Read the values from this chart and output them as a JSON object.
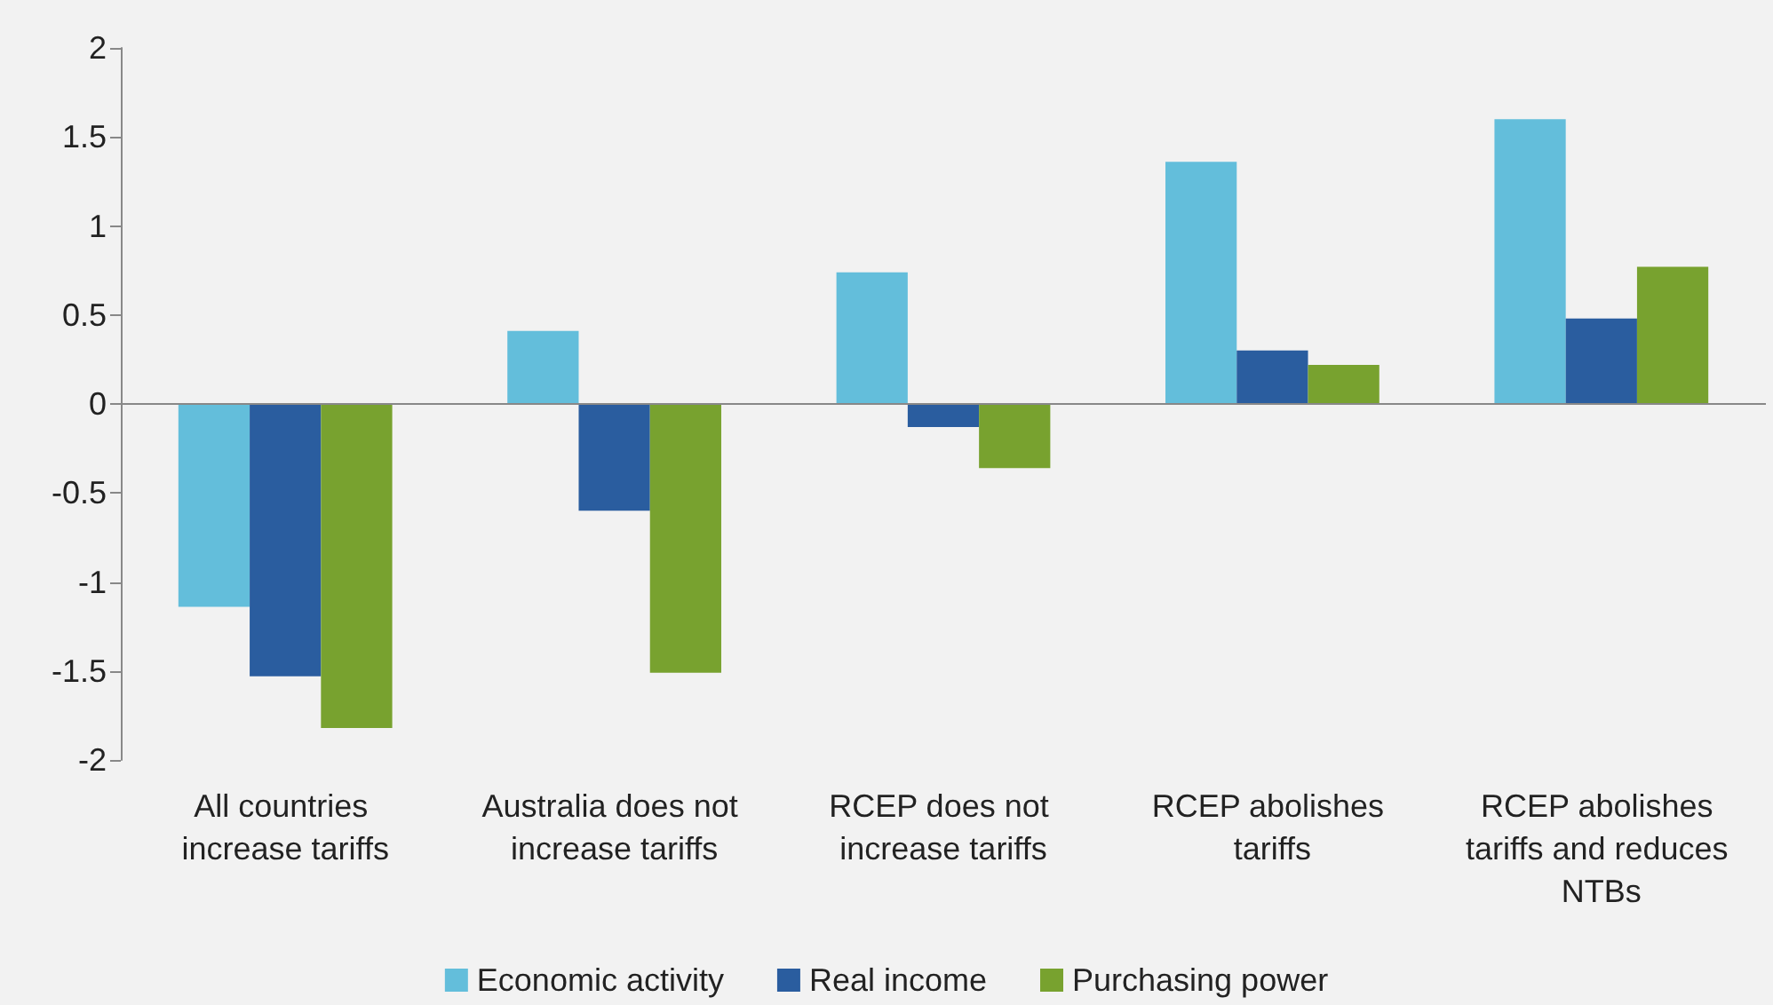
{
  "chart_data": {
    "type": "bar",
    "categories": [
      "All countries increase tariffs",
      "Australia does not increase tariffs",
      "RCEP does not increase tariffs",
      "RCEP abolishes tariffs",
      "RCEP abolishes tariffs and reduces NTBs"
    ],
    "series": [
      {
        "name": "Economic activity",
        "color": "#63bedb",
        "values": [
          -1.14,
          0.41,
          0.74,
          1.36,
          1.6
        ]
      },
      {
        "name": "Real income",
        "color": "#2a5d9f",
        "values": [
          -1.53,
          -0.6,
          -0.13,
          0.3,
          0.48
        ]
      },
      {
        "name": "Purchasing power",
        "color": "#78a22f",
        "values": [
          -1.82,
          -1.51,
          -0.36,
          0.22,
          0.77
        ]
      }
    ],
    "ylim": [
      -2,
      2
    ],
    "yticks": [
      -2,
      -1.5,
      -1,
      -0.5,
      0,
      0.5,
      1,
      1.5,
      2
    ],
    "grid": false,
    "legend": "bottom",
    "ref_lines": [
      {
        "axis": "y",
        "value": 0,
        "color": "#888888"
      }
    ]
  }
}
